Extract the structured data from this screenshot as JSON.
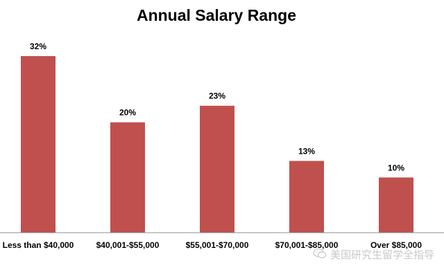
{
  "chart_data": {
    "type": "bar",
    "title": "Annual Salary Range",
    "categories": [
      "Less than $40,000",
      "$40,001-$55,000",
      "$55,001-$70,000",
      "$70,001-$85,000",
      "Over $85,000"
    ],
    "values": [
      32,
      20,
      23,
      13,
      10
    ],
    "data_labels": [
      "32%",
      "20%",
      "23%",
      "13%",
      "10%"
    ],
    "ylim": [
      0,
      32
    ],
    "grid": false,
    "legend": "none",
    "bar_color": "#c0504d"
  },
  "watermark": {
    "text": "美国研究生留学全指导",
    "icon": "wechat-icon"
  }
}
